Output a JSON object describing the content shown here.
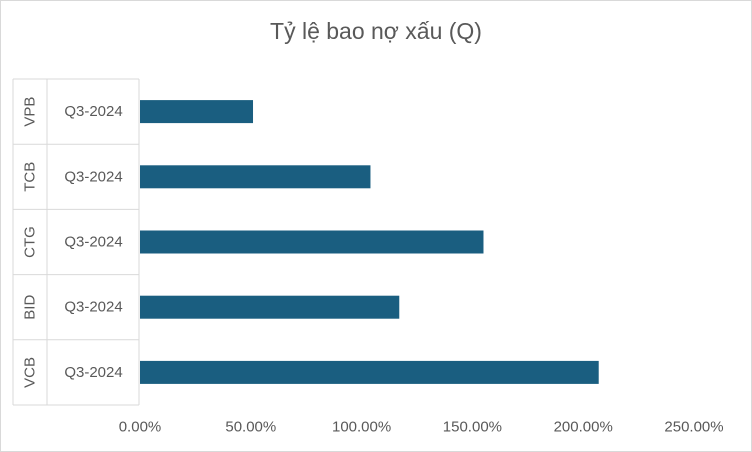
{
  "chart_data": {
    "type": "bar",
    "orientation": "horizontal",
    "title": "Tỷ lệ bao nợ xấu (Q)",
    "xlabel": "",
    "ylabel": "",
    "xlim": [
      0,
      2.5
    ],
    "x_ticks": [
      "0.00%",
      "50.00%",
      "100.00%",
      "150.00%",
      "200.00%",
      "250.00%"
    ],
    "x_tick_values": [
      0,
      0.5,
      1.0,
      1.5,
      2.0,
      2.5
    ],
    "grid": false,
    "legend": "none",
    "bar_color": "#1a5e80",
    "categories": [
      {
        "group": "VPB",
        "period": "Q3-2024",
        "value": 0.51
      },
      {
        "group": "TCB",
        "period": "Q3-2024",
        "value": 1.04
      },
      {
        "group": "CTG",
        "period": "Q3-2024",
        "value": 1.55
      },
      {
        "group": "BID",
        "period": "Q3-2024",
        "value": 1.17
      },
      {
        "group": "VCB",
        "period": "Q3-2024",
        "value": 2.07
      }
    ]
  }
}
